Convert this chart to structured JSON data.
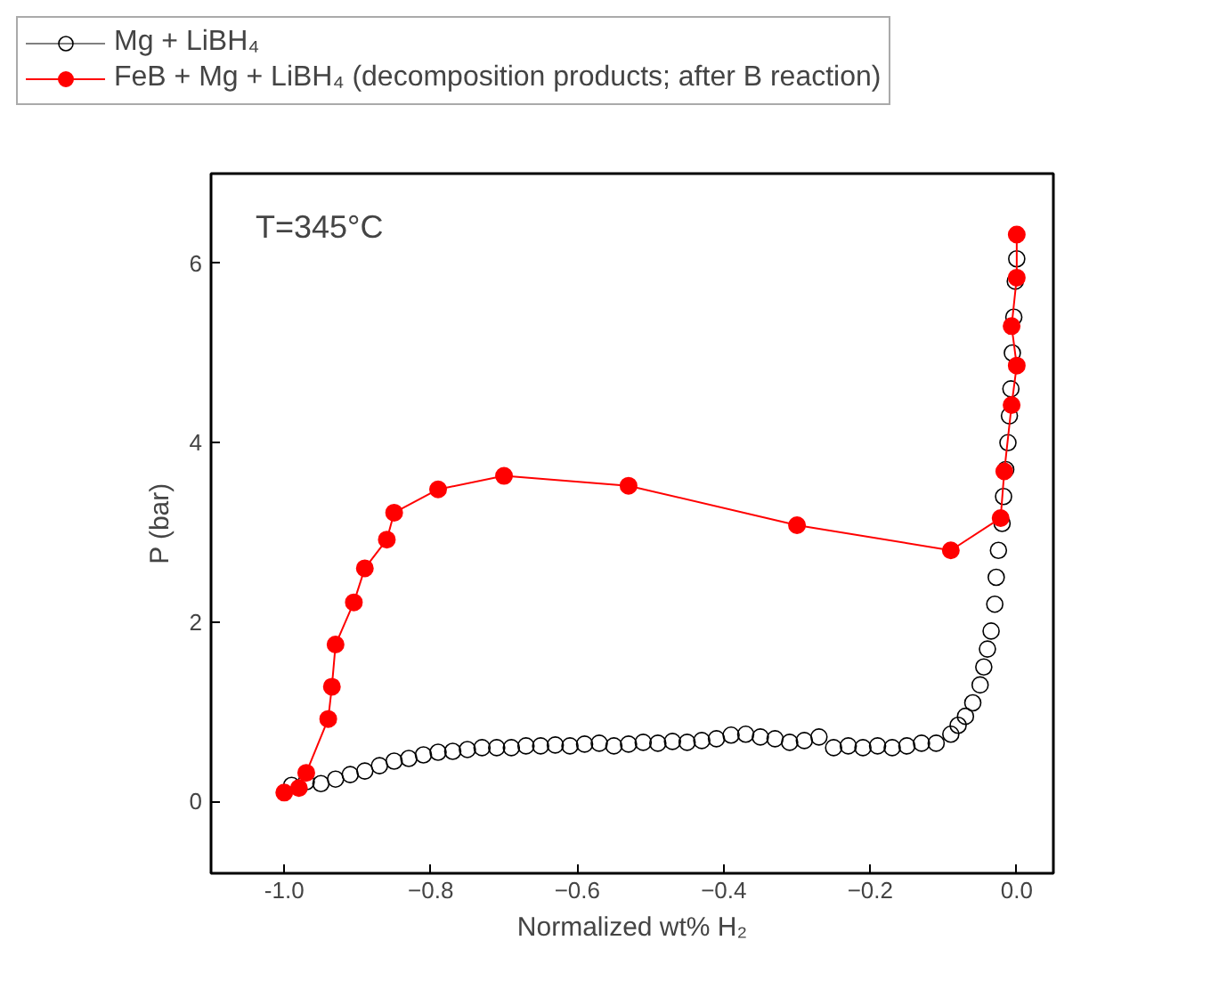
{
  "chart_data": {
    "type": "line",
    "xlabel": "Normalized wt% H₂",
    "ylabel": "P (bar)",
    "annotations": [
      "T=345°C"
    ],
    "xlim": [
      -1.1,
      0.05
    ],
    "ylim": [
      -0.8,
      7.0
    ],
    "xticks": [
      {
        "value": -1.0,
        "label": "-1.0"
      },
      -0.8,
      -0.6,
      -0.4,
      -0.2,
      {
        "value": 0.0,
        "label": "0.0"
      }
    ],
    "yticks": [
      0,
      2,
      4,
      6
    ],
    "grid": false,
    "legend": "top",
    "marker": "circle",
    "series": [
      {
        "name": "Mg + LiBH₄",
        "type": "scatter",
        "color": "#000000",
        "x": [
          -0.99,
          -0.97,
          -0.95,
          -0.93,
          -0.91,
          -0.89,
          -0.87,
          -0.85,
          -0.83,
          -0.81,
          -0.79,
          -0.77,
          -0.75,
          -0.73,
          -0.71,
          -0.69,
          -0.67,
          -0.65,
          -0.63,
          -0.61,
          -0.59,
          -0.57,
          -0.55,
          -0.53,
          -0.51,
          -0.49,
          -0.47,
          -0.45,
          -0.43,
          -0.41,
          -0.39,
          -0.37,
          -0.35,
          -0.33,
          -0.31,
          -0.29,
          -0.27,
          -0.25,
          -0.23,
          -0.21,
          -0.19,
          -0.17,
          -0.15,
          -0.13,
          -0.11,
          -0.09,
          -0.08,
          -0.07,
          -0.06,
          -0.05,
          -0.045,
          -0.04,
          -0.035,
          -0.03,
          -0.028,
          -0.025,
          -0.02,
          -0.018,
          -0.015,
          -0.012,
          -0.01,
          -0.008,
          -0.006,
          -0.004,
          -0.002,
          0.0
        ],
        "values": [
          0.18,
          0.22,
          0.2,
          0.25,
          0.3,
          0.34,
          0.4,
          0.45,
          0.48,
          0.52,
          0.55,
          0.56,
          0.58,
          0.6,
          0.6,
          0.6,
          0.62,
          0.62,
          0.63,
          0.62,
          0.64,
          0.65,
          0.62,
          0.64,
          0.66,
          0.65,
          0.67,
          0.66,
          0.68,
          0.7,
          0.74,
          0.75,
          0.72,
          0.7,
          0.66,
          0.68,
          0.72,
          0.6,
          0.62,
          0.6,
          0.62,
          0.6,
          0.62,
          0.65,
          0.65,
          0.75,
          0.85,
          0.95,
          1.1,
          1.3,
          1.5,
          1.7,
          1.9,
          2.2,
          2.5,
          2.8,
          3.1,
          3.4,
          3.7,
          4.0,
          4.3,
          4.6,
          5.0,
          5.4,
          5.8,
          6.05
        ]
      },
      {
        "name": "FeB + Mg + LiBH₄ (decomposition products; after B reaction)",
        "color": "#ff0000",
        "x": [
          -1.0,
          -0.98,
          -0.97,
          -0.94,
          -0.935,
          -0.93,
          -0.905,
          -0.89,
          -0.86,
          -0.85,
          -0.79,
          -0.7,
          -0.53,
          -0.3,
          -0.09,
          -0.022,
          -0.017,
          -0.007,
          0.0,
          -0.007,
          0.0,
          0.0
        ],
        "values": [
          0.1,
          0.15,
          0.32,
          0.92,
          1.28,
          1.75,
          2.22,
          2.6,
          2.92,
          3.22,
          3.48,
          3.63,
          3.52,
          3.08,
          2.8,
          3.16,
          3.68,
          4.42,
          4.86,
          5.3,
          5.84,
          6.32
        ]
      }
    ]
  }
}
